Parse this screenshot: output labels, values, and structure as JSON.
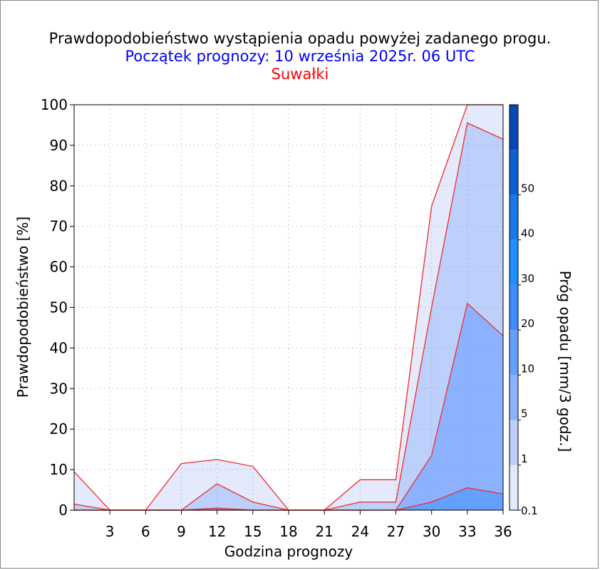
{
  "title": "Prawdopodobieństwo wystąpienia opadu powyżej zadanego progu.",
  "subtitle": "Początek prognozy: 10 września 2025r. 06 UTC",
  "station": "Suwałki",
  "chart_data": {
    "type": "area",
    "xlabel": "Godzina prognozy",
    "ylabel": "Prawdopodobieństwo [%]",
    "x": [
      0,
      3,
      6,
      9,
      12,
      15,
      18,
      21,
      24,
      27,
      30,
      33,
      36
    ],
    "xticks": [
      "3",
      "6",
      "9",
      "12",
      "15",
      "18",
      "21",
      "24",
      "27",
      "30",
      "33",
      "36"
    ],
    "xlim": [
      0,
      36
    ],
    "ylim": [
      0,
      100
    ],
    "yticks": [
      "0",
      "10",
      "20",
      "30",
      "40",
      "50",
      "60",
      "70",
      "80",
      "90",
      "100"
    ],
    "grid": true,
    "series": [
      {
        "name": "0.1",
        "color": "#e4e9fb",
        "values": [
          9.5,
          0,
          0,
          11.5,
          12.5,
          10.8,
          0,
          0,
          7.5,
          7.5,
          75,
          100,
          100
        ]
      },
      {
        "name": "1",
        "color": "#bcd0fb",
        "values": [
          1.5,
          0,
          0,
          0,
          6.5,
          2,
          0,
          0,
          2,
          2,
          50,
          95.5,
          91.5
        ]
      },
      {
        "name": "5",
        "color": "#8cb2ff",
        "values": [
          0,
          0,
          0,
          0,
          0,
          0,
          0,
          0,
          0,
          0,
          13.5,
          51,
          43
        ]
      },
      {
        "name": "10",
        "color": "#64a0ff",
        "values": [
          0,
          0,
          0,
          0,
          0.5,
          0,
          0,
          0,
          0,
          0,
          2,
          5.5,
          4
        ]
      }
    ],
    "line_color": "#ee2c2c",
    "colorbar": {
      "label": "Próg opadu [mm/3 godz.]",
      "ticks": [
        "0.1",
        "1",
        "5",
        "10",
        "20",
        "30",
        "40",
        "50"
      ],
      "colors": [
        "#e4e9fb",
        "#bcd0fb",
        "#8cb2ff",
        "#64a0ff",
        "#3e8cff",
        "#1e90ff",
        "#1878e8",
        "#0c60cf",
        "#0848b5"
      ]
    }
  }
}
